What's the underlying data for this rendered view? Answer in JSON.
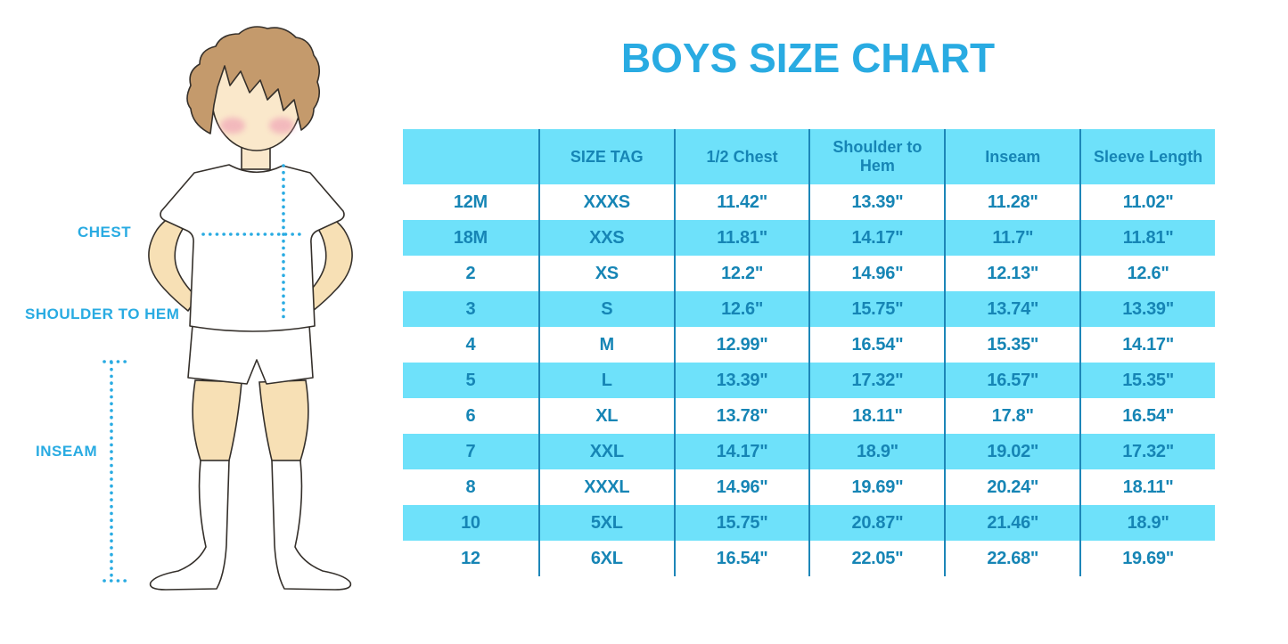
{
  "title": "BOYS SIZE CHART",
  "figure": {
    "description": "cartoon boy in white t-shirt, shorts and knee socks with measurement guides",
    "labels": {
      "chest": "CHEST",
      "shoulder_to_hem": "SHOULDER TO HEM",
      "inseam": "INSEAM"
    },
    "colors": {
      "hair": "#C49A6C",
      "face_skin": "#FAE8CB",
      "limb_skin": "#F7E0B5",
      "cheek": "#EFA0B5",
      "garment": "#FFFFFF",
      "outline": "#35302B",
      "measure_dots": "#29ABE2"
    }
  },
  "colors": {
    "accent_title": "#29ABE2",
    "table_stripe": "#6EE1FA",
    "table_divider": "#1D86B8",
    "table_text": "#1685B5",
    "background": "#FFFFFF"
  },
  "chart_data": {
    "type": "table",
    "title": "BOYS SIZE CHART",
    "columns": [
      "",
      "SIZE TAG",
      "1/2 Chest",
      "Shoulder to Hem",
      "Inseam",
      "Sleeve Length"
    ],
    "rows": [
      [
        "12M",
        "XXXS",
        "11.42\"",
        "13.39\"",
        "11.28\"",
        "11.02\""
      ],
      [
        "18M",
        "XXS",
        "11.81\"",
        "14.17\"",
        "11.7\"",
        "11.81\""
      ],
      [
        "2",
        "XS",
        "12.2\"",
        "14.96\"",
        "12.13\"",
        "12.6\""
      ],
      [
        "3",
        "S",
        "12.6\"",
        "15.75\"",
        "13.74\"",
        "13.39\""
      ],
      [
        "4",
        "M",
        "12.99\"",
        "16.54\"",
        "15.35\"",
        "14.17\""
      ],
      [
        "5",
        "L",
        "13.39\"",
        "17.32\"",
        "16.57\"",
        "15.35\""
      ],
      [
        "6",
        "XL",
        "13.78\"",
        "18.11\"",
        "17.8\"",
        "16.54\""
      ],
      [
        "7",
        "XXL",
        "14.17\"",
        "18.9\"",
        "19.02\"",
        "17.32\""
      ],
      [
        "8",
        "XXXL",
        "14.96\"",
        "19.69\"",
        "20.24\"",
        "18.11\""
      ],
      [
        "10",
        "5XL",
        "15.75\"",
        "20.87\"",
        "21.46\"",
        "18.9\""
      ],
      [
        "12",
        "6XL",
        "16.54\"",
        "22.05\"",
        "22.68\"",
        "19.69\""
      ]
    ],
    "layout": {
      "header_background": "#6EE1FA",
      "row_striping": "alternate rows light-cyan starting with second data row",
      "column_dividers": true,
      "outer_border": false
    }
  }
}
